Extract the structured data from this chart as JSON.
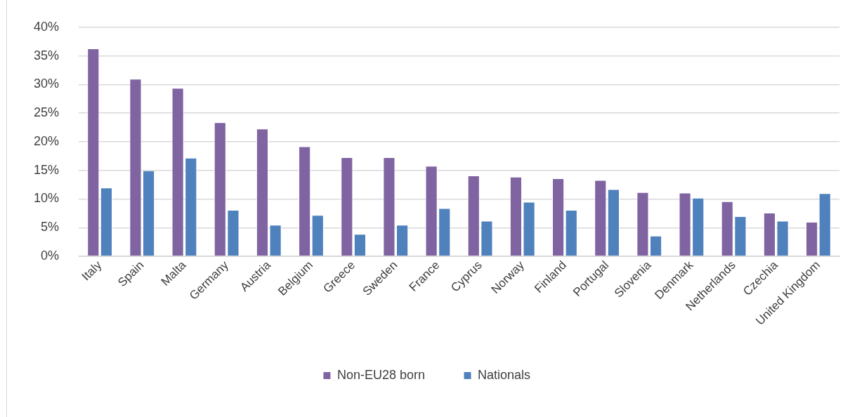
{
  "chart_data": {
    "type": "bar",
    "categories": [
      "Italy",
      "Spain",
      "Malta",
      "Germany",
      "Austria",
      "Belgium",
      "Greece",
      "Sweden",
      "France",
      "Cyprus",
      "Norway",
      "Finland",
      "Portugal",
      "Slovenia",
      "Denmark",
      "Netherlands",
      "Czechia",
      "United Kingdom"
    ],
    "series": [
      {
        "name": "Non-EU28 born",
        "color": "#8064a2",
        "values": [
          36.3,
          31.0,
          29.4,
          23.4,
          22.3,
          19.2,
          17.3,
          17.3,
          15.8,
          14.1,
          13.9,
          13.6,
          13.3,
          11.2,
          11.1,
          9.6,
          7.6,
          6.0
        ]
      },
      {
        "name": "Nationals",
        "color": "#4f81bd",
        "values": [
          12.0,
          15.0,
          17.2,
          8.1,
          5.5,
          7.2,
          3.9,
          5.5,
          8.4,
          6.2,
          9.5,
          8.1,
          11.7,
          3.6,
          10.2,
          7.0,
          6.2,
          11.0
        ]
      }
    ],
    "ylim": [
      0,
      40
    ],
    "yticks": [
      {
        "value": 0,
        "label": "0%"
      },
      {
        "value": 5,
        "label": "5%"
      },
      {
        "value": 10,
        "label": "10%"
      },
      {
        "value": 15,
        "label": "15%"
      },
      {
        "value": 20,
        "label": "20%"
      },
      {
        "value": 25,
        "label": "25%"
      },
      {
        "value": 30,
        "label": "30%"
      },
      {
        "value": 35,
        "label": "35%"
      },
      {
        "value": 40,
        "label": "40%"
      }
    ],
    "grid": "y",
    "legend": "bottom"
  }
}
